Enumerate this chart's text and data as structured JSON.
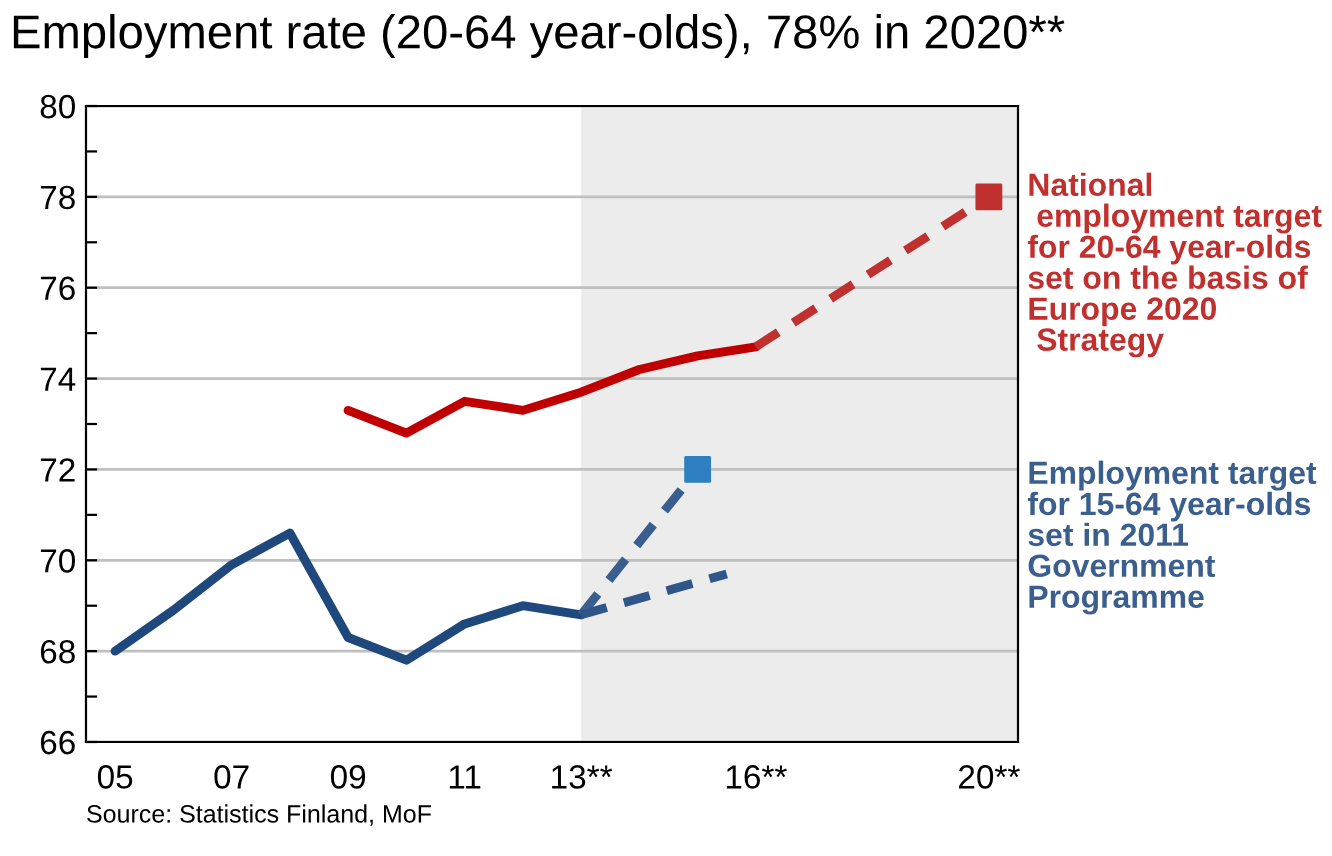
{
  "chart_data": {
    "type": "line",
    "title": "Employment rate (20-64 year-olds), 78% in 2020**",
    "xlim": [
      4.5,
      20.5
    ],
    "xticks": [
      {
        "value": 5,
        "label": "05"
      },
      {
        "value": 7,
        "label": "07"
      },
      {
        "value": 9,
        "label": "09"
      },
      {
        "value": 11,
        "label": "11"
      },
      {
        "value": 13,
        "label": "13**"
      },
      {
        "value": 16,
        "label": "16**"
      },
      {
        "value": 20,
        "label": "20**"
      }
    ],
    "ylim": [
      66,
      80
    ],
    "yticks": [
      66,
      {
        "value": 67,
        "label": null
      },
      68,
      {
        "value": 69,
        "label": null
      },
      70,
      {
        "value": 71,
        "label": null
      },
      72,
      {
        "value": 73,
        "label": null
      },
      74,
      {
        "value": 75,
        "label": null
      },
      76,
      {
        "value": 77,
        "label": null
      },
      78,
      {
        "value": 79,
        "label": null
      },
      80
    ],
    "grid": "y",
    "legend": false,
    "bands": [
      {
        "axis": "x",
        "from": 13,
        "to": 20.5,
        "color": "#ececec"
      }
    ],
    "series": [
      {
        "color": "#c00000",
        "x": [
          9,
          10,
          11,
          12,
          13,
          14,
          15,
          16
        ],
        "values": [
          73.3,
          72.8,
          73.5,
          73.3,
          73.7,
          74.2,
          74.5,
          74.7
        ],
        "line_style": "solid",
        "marker": "none"
      },
      {
        "name": "National\n employment target\nfor 20-64 year-olds\nset on the basis of\nEurope 2020\n Strategy",
        "color": "#c0302f",
        "x": [
          16,
          20
        ],
        "values": [
          74.7,
          78.0
        ],
        "line_style": "dashed",
        "marker": "none"
      },
      {
        "type": "scatter",
        "color": "#c0302f",
        "x": [
          20
        ],
        "values": [
          78.0
        ],
        "marker": "square"
      },
      {
        "color": "#1f497d",
        "x": [
          5,
          6,
          7,
          8,
          9,
          10,
          11,
          12,
          13
        ],
        "values": [
          68.0,
          68.9,
          69.9,
          70.6,
          68.3,
          67.8,
          68.6,
          69.0,
          68.8
        ],
        "line_style": "solid",
        "marker": "none"
      },
      {
        "name": "Employment target\nfor 15-64 year-olds\nset in 2011\nGovernment\nProgramme",
        "color": "#3a5f8f",
        "x": [
          13,
          15
        ],
        "values": [
          68.8,
          72.0
        ],
        "line_style": "dashed",
        "marker": "none"
      },
      {
        "color": "#2f5589",
        "x": [
          13,
          15.5
        ],
        "values": [
          68.8,
          69.7
        ],
        "line_style": "dashed",
        "marker": "none"
      },
      {
        "type": "scatter",
        "color": "#2e7fc1",
        "x": [
          15
        ],
        "values": [
          72.0
        ],
        "marker": "square"
      }
    ],
    "annotations": [
      "Source: Statistics Finland, MoF"
    ]
  }
}
